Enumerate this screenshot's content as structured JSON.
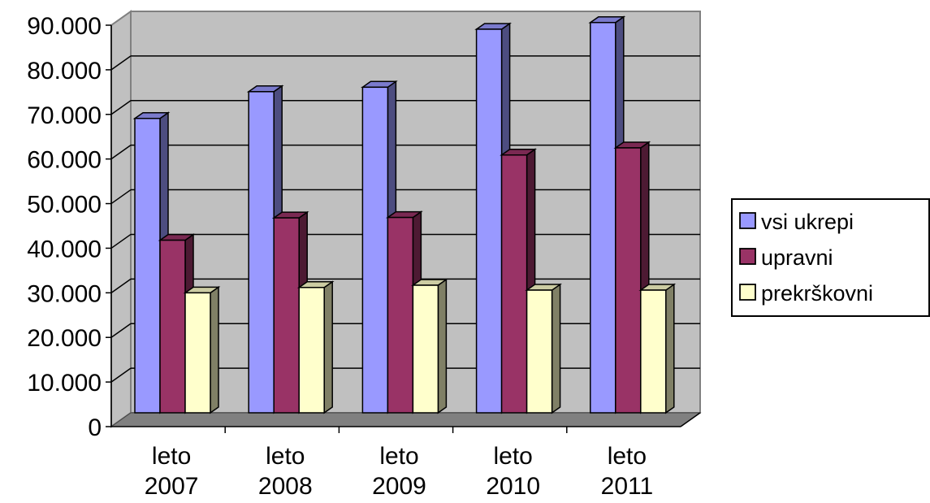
{
  "chart_data": {
    "type": "bar",
    "categories": [
      [
        "leto",
        "2007"
      ],
      [
        "leto",
        "2008"
      ],
      [
        "leto",
        "2009"
      ],
      [
        "leto",
        "2010"
      ],
      [
        "leto",
        "2011"
      ]
    ],
    "series": [
      {
        "name": "vsi ukrepi",
        "values": [
          66000,
          72000,
          73000,
          86000,
          87500
        ],
        "color": "#9999ff"
      },
      {
        "name": "upravni",
        "values": [
          38700,
          43700,
          43800,
          57800,
          59400
        ],
        "color": "#993366"
      },
      {
        "name": "prekrškovni",
        "values": [
          26900,
          28100,
          28600,
          27500,
          27500
        ],
        "color": "#ffffcc"
      }
    ],
    "ylim": [
      0,
      90000
    ],
    "yticks": [
      "0",
      "10.000",
      "20.000",
      "30.000",
      "40.000",
      "50.000",
      "60.000",
      "70.000",
      "80.000",
      "90.000"
    ],
    "grid": true,
    "legend": "right",
    "wall_color": "#c0c0c0",
    "floor_color": "#808080"
  }
}
